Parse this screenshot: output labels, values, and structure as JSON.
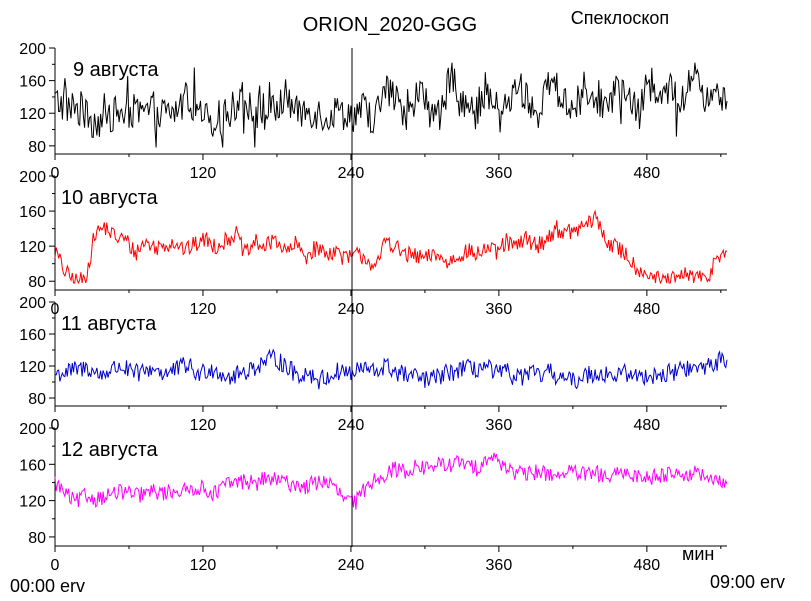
{
  "title": "ORION_2020-GGG",
  "subtitle": "Спеклоскоп",
  "x_unit_label": "мин",
  "time_start": "00:00 erv",
  "time_end": "09:00 erv",
  "chart_data": [
    {
      "type": "line",
      "panel_label": "9 августа",
      "color": "#000000",
      "xlim": [
        0,
        545
      ],
      "ylim": [
        70,
        200
      ],
      "x_ticks": [
        0,
        120,
        240,
        360,
        480
      ],
      "y_ticks": [
        80,
        120,
        160,
        200
      ],
      "y_minor_ticks": [
        100,
        140,
        180
      ],
      "series": [
        {
          "name": "",
          "base": [
            135,
            130,
            125,
            112,
            110,
            118,
            120,
            122,
            118,
            125,
            120,
            122,
            140,
            118,
            110,
            115,
            122,
            148,
            120,
            118,
            122,
            142,
            118,
            125,
            120,
            115,
            122,
            118,
            125,
            112,
            150,
            135,
            110,
            148,
            125,
            115,
            170,
            140,
            112,
            150,
            125,
            130,
            155,
            135,
            120,
            160,
            140,
            125,
            150,
            145,
            130,
            150,
            140,
            115,
            170,
            135,
            150,
            130,
            175,
            140,
            160,
            130
          ]
        }
      ]
    },
    {
      "type": "line",
      "panel_label": "10 августа",
      "color": "#ff0000",
      "xlim": [
        0,
        545
      ],
      "ylim": [
        70,
        200
      ],
      "x_ticks": [
        0,
        120,
        240,
        360,
        480
      ],
      "y_ticks": [
        80,
        120,
        160,
        200
      ],
      "y_minor_ticks": [
        100,
        140,
        180
      ],
      "series": [
        {
          "name": "",
          "base": [
            115,
            90,
            80,
            82,
            135,
            142,
            130,
            128,
            112,
            125,
            118,
            122,
            125,
            115,
            122,
            128,
            120,
            126,
            135,
            110,
            125,
            118,
            130,
            112,
            122,
            108,
            118,
            112,
            115,
            105,
            110,
            108,
            92,
            130,
            118,
            110,
            108,
            105,
            112,
            100,
            108,
            115,
            110,
            118,
            112,
            125,
            118,
            130,
            120,
            128,
            140,
            135,
            138,
            145,
            152,
            125,
            118,
            110,
            95,
            90,
            82,
            80,
            82,
            88,
            85,
            80,
            110,
            115
          ]
        }
      ]
    },
    {
      "type": "line",
      "panel_label": "11 августа",
      "color": "#0000cc",
      "xlim": [
        0,
        545
      ],
      "ylim": [
        70,
        200
      ],
      "x_ticks": [
        0,
        120,
        240,
        360,
        480
      ],
      "y_ticks": [
        80,
        120,
        160,
        200
      ],
      "y_minor_ticks": [
        100,
        140,
        180
      ],
      "series": [
        {
          "name": "",
          "base": [
            110,
            112,
            115,
            118,
            108,
            115,
            120,
            110,
            112,
            118,
            110,
            115,
            122,
            108,
            118,
            112,
            105,
            112,
            118,
            125,
            130,
            120,
            108,
            112,
            102,
            108,
            115,
            110,
            118,
            112,
            120,
            112,
            108,
            105,
            102,
            108,
            112,
            118,
            115,
            120,
            110,
            112,
            105,
            110,
            108,
            112,
            105,
            100,
            108,
            112,
            110,
            108,
            112,
            105,
            110,
            108,
            112,
            118,
            115,
            120,
            125,
            128
          ]
        }
      ]
    },
    {
      "type": "line",
      "panel_label": "12 августа",
      "color": "#ff00ff",
      "xlim": [
        0,
        545
      ],
      "ylim": [
        70,
        200
      ],
      "x_ticks": [
        0,
        120,
        240,
        360,
        480
      ],
      "y_ticks": [
        80,
        120,
        160,
        200
      ],
      "y_minor_ticks": [
        100,
        140,
        180
      ],
      "series": [
        {
          "name": "",
          "base": [
            140,
            128,
            118,
            125,
            122,
            125,
            128,
            130,
            125,
            128,
            130,
            128,
            132,
            130,
            135,
            132,
            128,
            138,
            140,
            142,
            138,
            145,
            142,
            140,
            138,
            135,
            140,
            142,
            132,
            120,
            118,
            135,
            145,
            150,
            155,
            152,
            158,
            155,
            160,
            158,
            162,
            160,
            155,
            168,
            165,
            158,
            150,
            148,
            152,
            150,
            148,
            152,
            150,
            148,
            150,
            145,
            148,
            150,
            148,
            145,
            148,
            150,
            152,
            148,
            150,
            145,
            140,
            138
          ]
        }
      ]
    }
  ]
}
